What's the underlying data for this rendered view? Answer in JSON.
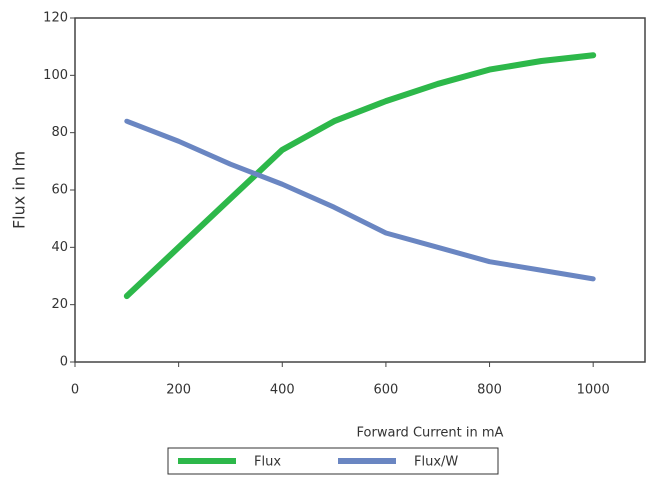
{
  "chart_data": {
    "type": "line",
    "x_label": "Forward Current in mA",
    "y_label": "Flux in lm",
    "x": [
      100,
      200,
      300,
      400,
      500,
      600,
      700,
      800,
      900,
      1000
    ],
    "series": [
      {
        "name": "Flux",
        "color": "#2db84a",
        "values": [
          23,
          40,
          57,
          74,
          84,
          91,
          97,
          102,
          105,
          107
        ]
      },
      {
        "name": "Flux/W",
        "color": "#6a86c2",
        "values": [
          84,
          77,
          69,
          62,
          54,
          45,
          40,
          35,
          32,
          29
        ]
      }
    ],
    "xlim": [
      0,
      1100
    ],
    "xticks": [
      0,
      200,
      400,
      600,
      800,
      1000
    ],
    "ylim": [
      0,
      120
    ],
    "yticks": [
      0,
      20,
      40,
      60,
      80,
      100,
      120
    ],
    "legend": "bottom"
  }
}
